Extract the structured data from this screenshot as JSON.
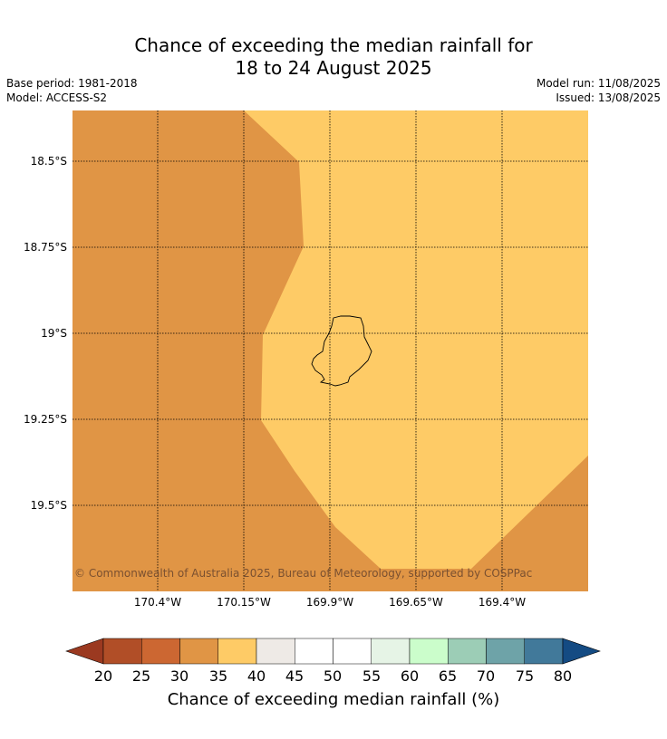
{
  "title_line1": "Chance of exceeding the median rainfall for",
  "title_line2": "18 to 24 August 2025",
  "base_period": "Base period: 1981-2018",
  "model": "Model: ACCESS-S2",
  "model_run": "Model run: 11/08/2025",
  "issued": "Issued: 13/08/2025",
  "copyright": "© Commonwealth of Australia 2025, Bureau of Meteorology, supported by COSPPac",
  "lat_labels": [
    "18.5°S",
    "18.75°S",
    "19°S",
    "19.25°S",
    "19.5°S"
  ],
  "lon_labels": [
    "170.4°W",
    "170.15°W",
    "169.9°W",
    "169.65°W",
    "169.4°W"
  ],
  "colors": {
    "band_30_35": "#E09545",
    "band_35_40": "#FECB66"
  },
  "colorbar": {
    "label": "Chance of exceeding median rainfall (%)",
    "ticks": [
      "20",
      "25",
      "30",
      "35",
      "40",
      "45",
      "50",
      "55",
      "60",
      "65",
      "70",
      "75",
      "80"
    ],
    "colors": [
      "#9B3920",
      "#B14E27",
      "#CC6732",
      "#E09545",
      "#FECB66",
      "#EEEAE6",
      "#FFFFFF",
      "#FFFFFF",
      "#E6F4E6",
      "#CBFDCB",
      "#9CCDB6",
      "#6EA3A8",
      "#41799A",
      "#144B83"
    ]
  }
}
